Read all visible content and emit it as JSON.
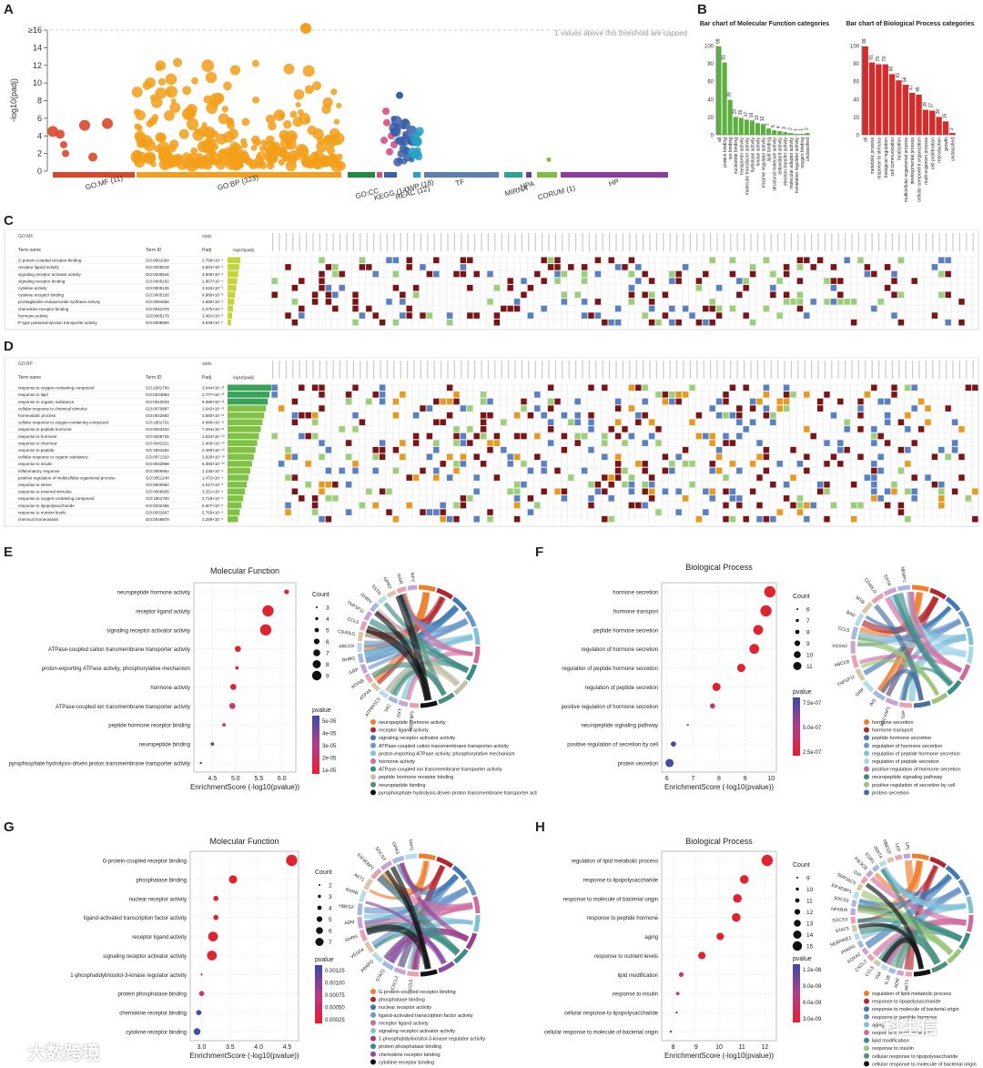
{
  "panels": {
    "A": "A",
    "B": "B",
    "C": "C",
    "D": "D",
    "E": "E",
    "F": "F",
    "G": "G",
    "H": "H"
  },
  "panelA": {
    "y_label": "-log10(padj)",
    "y_ticks": [
      "0",
      "2",
      "4",
      "6",
      "8",
      "10",
      "12",
      "14",
      "≥16"
    ],
    "cap_note": "1 values above this threshold are capped",
    "sources": [
      {
        "label": "GO:MF (11)",
        "color": "#d9472b"
      },
      {
        "label": "GO:BP (323)",
        "color": "#f29f1a"
      },
      {
        "label": "GO:CC",
        "color": "#1e8b3e"
      },
      {
        "label": "KEGG (14)",
        "color": "#d94d86"
      },
      {
        "label": "REAC (12)",
        "color": "#3b5fa8"
      },
      {
        "label": "WP (18)",
        "color": "#24a0c6"
      },
      {
        "label": "TF",
        "color": "#5a7fb0"
      },
      {
        "label": "MIRNA",
        "color": "#2aa39a"
      },
      {
        "label": "HPA",
        "color": "#6a3da0"
      },
      {
        "label": "CORUM (1)",
        "color": "#7fbf3f"
      },
      {
        "label": "HP",
        "color": "#8e3aa0"
      }
    ]
  },
  "panelB_mf": {
    "title": "Bar chart of Molecular Function categories",
    "color": "#5cb040",
    "y_ticks": [
      "0",
      "20",
      "40",
      "60",
      "80",
      "100"
    ],
    "chart_data": {
      "type": "bar",
      "categories": [
        "all",
        "protein binding",
        "ion binding",
        "nucleotide binding",
        "transporter activity",
        "molecular transducer activity",
        "hydrolase activity",
        "kinase activity",
        "enzyme regulator activity",
        "lipid binding",
        "structural molecule activity",
        "antioxidant activity",
        "electron transfer activity",
        "molecular adaptor activity",
        "translation regulator activity",
        "oxygen binding",
        "unclassified"
      ],
      "values": [
        99,
        81,
        39,
        20,
        19,
        17,
        16,
        13,
        12,
        7,
        5,
        4,
        3,
        2,
        1,
        1,
        2
      ]
    },
    "value_labels": [
      "99",
      "81",
      "39",
      "20",
      "19",
      "17",
      "16",
      "13",
      "12",
      "7",
      "5",
      "4",
      "3",
      "2",
      "1",
      "1",
      "2"
    ]
  },
  "panelB_bp": {
    "title": "Bar chart of Biological Process categories",
    "color": "#d42b2b",
    "y_ticks": [
      "0",
      "20",
      "40",
      "60",
      "80",
      "100"
    ],
    "chart_data": {
      "type": "bar",
      "categories": [
        "all",
        "metabolic process",
        "response to stimulus",
        "biological regulation",
        "cell communication",
        "localization",
        "multicellular organismal process",
        "developmental process",
        "cellular component organization",
        "multi-organism process",
        "cell proliferation",
        "reproduction",
        "growth",
        "unclassified"
      ],
      "values": [
        99,
        81,
        79,
        79,
        68,
        61,
        56,
        47,
        45,
        28,
        27,
        20,
        15,
        2
      ]
    },
    "value_labels": [
      "99",
      "81",
      "79",
      "79",
      "68",
      "61",
      "56",
      "47",
      "45",
      "28",
      "27",
      "20",
      "15",
      "2"
    ]
  },
  "panelC": {
    "source": "GO:MF",
    "col_term": "Term name",
    "col_id": "Term ID",
    "col_padj": "Padj",
    "stats": "stats",
    "axis": "-log10(padj)",
    "rows": [
      {
        "name": "G protein-coupled receptor binding",
        "id": "GO:0001664",
        "padj": "2.786×10⁻⁵"
      },
      {
        "name": "receptor ligand activity",
        "id": "GO:0048018",
        "padj": "3.504×10⁻⁵"
      },
      {
        "name": "signaling receptor activator activity",
        "id": "GO:0030546",
        "padj": "3.609×10⁻⁵"
      },
      {
        "name": "signaling receptor binding",
        "id": "GO:0005102",
        "padj": "2.967×10⁻⁴"
      },
      {
        "name": "cytokine activity",
        "id": "GO:0005125",
        "padj": "2.515×10⁻³"
      },
      {
        "name": "cytokine receptor binding",
        "id": "GO:0005126",
        "padj": "8.980×10⁻³"
      },
      {
        "name": "prostaglandin-endoperoxide synthase activity",
        "id": "GO:0004666",
        "padj": "1.655×10⁻²"
      },
      {
        "name": "chemokine receptor binding",
        "id": "GO:0042379",
        "padj": "2.375×10⁻²"
      },
      {
        "name": "hormone activity",
        "id": "GO:0005179",
        "padj": "3.481×10⁻²"
      },
      {
        "name": "P-type potassium/proton transporter activity",
        "id": "GO:0008900",
        "padj": "4.949×10⁻²"
      }
    ]
  },
  "panelD": {
    "source": "GO:BP",
    "col_term": "Term name",
    "col_id": "Term ID",
    "col_padj": "Padj",
    "stats": "stats",
    "axis": "-log10(padj)",
    "rows": [
      {
        "name": "response to oxygen-containing compound",
        "id": "GO:1901700",
        "padj": "3.044×10⁻¹³"
      },
      {
        "name": "response to lipid",
        "id": "GO:0033993",
        "padj": "2.777×10⁻¹²"
      },
      {
        "name": "response to organic substance",
        "id": "GO:0010033",
        "padj": "6.080×10⁻¹²"
      },
      {
        "name": "cellular response to chemical stimulus",
        "id": "GO:0070887",
        "padj": "1.642×10⁻¹¹"
      },
      {
        "name": "homeostatic process",
        "id": "GO:0042592",
        "padj": "3.680×10⁻¹¹"
      },
      {
        "name": "cellular response to oxygen-containing compound",
        "id": "GO:1901701",
        "padj": "4.086×10⁻¹¹"
      },
      {
        "name": "response to peptide hormone",
        "id": "GO:0043434",
        "padj": "7.494×10⁻¹¹"
      },
      {
        "name": "response to hormone",
        "id": "GO:0009725",
        "padj": "1.534×10⁻¹⁰"
      },
      {
        "name": "response to chemical",
        "id": "GO:0042221",
        "padj": "2.406×10⁻¹⁰"
      },
      {
        "name": "response to peptide",
        "id": "GO:1901652",
        "padj": "2.480×10⁻¹⁰"
      },
      {
        "name": "cellular response to organic substance",
        "id": "GO:0071310",
        "padj": "3.928×10⁻¹⁰"
      },
      {
        "name": "response to insulin",
        "id": "GO:0032868",
        "padj": "5.383×10⁻¹⁰"
      },
      {
        "name": "inflammatory response",
        "id": "GO:0006954",
        "padj": "1.235×10⁻⁹"
      },
      {
        "name": "positive regulation of multicellular organismal process",
        "id": "GO:0051240",
        "padj": "1.472×10⁻⁹"
      },
      {
        "name": "response to stress",
        "id": "GO:0006950",
        "padj": "2.017×10⁻⁹"
      },
      {
        "name": "response to external stimulus",
        "id": "GO:0009605",
        "padj": "3.251×10⁻⁹"
      },
      {
        "name": "response to oxygen-containing compound",
        "id": "GO:1901700",
        "padj": "3.718×10⁻⁹"
      },
      {
        "name": "response to lipopolysaccharide",
        "id": "GO:0032496",
        "padj": "5.607×10⁻⁹"
      },
      {
        "name": "response to nutrient levels",
        "id": "GO:0031667",
        "padj": "5.760×10⁻⁹"
      },
      {
        "name": "chemical homeostasis",
        "id": "GO:0048878",
        "padj": "1.259×10⁻⁸"
      }
    ]
  },
  "panelE": {
    "title": "Molecular Function",
    "xlabel": "EnrichmentScore (-log10(pvalue))",
    "x_ticks": [
      "4.5",
      "5.0",
      "5.5",
      "6.0"
    ],
    "count_title": "Count",
    "count_values": [
      "3",
      "4",
      "5",
      "6",
      "7",
      "8",
      "9"
    ],
    "pvalue_title": "pvalue",
    "pvalue_ticks": [
      "5e-05",
      "4e-05",
      "3e-05",
      "2e-05",
      "1e-05"
    ],
    "chart_data": {
      "type": "scatter",
      "terms": [
        "neuropeptide hormone activity",
        "receptor ligand activity",
        "signaling receptor activator activity",
        "ATPase-coupled cation transmembrane transporter activity",
        "proton-exporting ATPase activity, phosphorylative mechanism",
        "hormone activity",
        "ATPase-coupled ion transmembrane transporter activity",
        "peptide hormone receptor binding",
        "neuropeptide binding",
        "pyrophosphate hydrolysis-driven proton transmembrane transporter activity"
      ],
      "x": [
        6.1,
        5.7,
        5.65,
        5.05,
        5.03,
        4.95,
        4.93,
        4.75,
        4.5,
        4.25
      ],
      "count": [
        4,
        9,
        9,
        5,
        3,
        5,
        5,
        3,
        3,
        2
      ],
      "xlim": [
        4.1,
        6.3
      ]
    },
    "chord_genes": [
      "ADCY8P1",
      "OXT",
      "TAC",
      "ATP6V1C1",
      "ATP4A",
      "ATP4B",
      "GRP",
      "RHBG",
      "ABCC8",
      "CD40LG",
      "CCL5",
      "TNFSF11",
      "GHRH",
      "SSTR",
      "GPR3",
      "INSR",
      "NPY"
    ],
    "legend": [
      "neuropeptide hormone activity",
      "receptor ligand activity",
      "signaling receptor activator activity",
      "ATPase-coupled cation transmembrane transporter activity",
      "proton-exporting ATPase activity, phosphorylative mechanism",
      "hormone activity",
      "ATPase-coupled ion transmembrane transporter activity",
      "peptide hormone receptor binding",
      "neuropeptide binding",
      "pyrophosphate hydrolysis-driven proton transmembrane transporter activity"
    ],
    "legend_colors": [
      "#ef7d2a",
      "#b3272c",
      "#3f78b4",
      "#6b96c9",
      "#7fc1d9",
      "#d16b9f",
      "#3b8c86",
      "#c8c0a8",
      "#4a8f7f",
      "#111111"
    ]
  },
  "panelF": {
    "title": "Biological Process",
    "xlabel": "EnrichmentScore (-log10(pvalue))",
    "x_ticks": [
      "6",
      "7",
      "8",
      "9",
      "10"
    ],
    "count_title": "Count",
    "count_values": [
      "6",
      "7",
      "8",
      "9",
      "10",
      "11"
    ],
    "pvalue_title": "pvalue",
    "pvalue_ticks": [
      "7.5e-07",
      "5.0e-07",
      "2.5e-07"
    ],
    "chart_data": {
      "type": "scatter",
      "terms": [
        "hormone secretion",
        "hormone transport",
        "peptide hormone secretion",
        "regulation of hormone secretion",
        "regulation of peptide hormone secretion",
        "regulation of peptide secretion",
        "positive regulation of hormone secretion",
        "neuropeptide signaling pathway",
        "positive regulation of secretion by cell",
        "protein secretion"
      ],
      "x": [
        9.95,
        9.8,
        9.5,
        9.35,
        8.85,
        7.9,
        7.75,
        6.8,
        6.25,
        6.1
      ],
      "count": [
        11,
        11,
        10,
        10,
        9,
        9,
        7,
        5,
        7,
        9
      ],
      "xlim": [
        5.8,
        10.2
      ]
    },
    "chord_genes": [
      "GIP",
      "ADCYAP1",
      "INS",
      "GRP",
      "TNFSF11",
      "ABCC8",
      "FOXA2",
      "CCL5",
      "BAD",
      "MYB",
      "CD40LG",
      "SSTR",
      "NEMP1"
    ],
    "legend": [
      "hormone secretion",
      "hormone transport",
      "peptide hormone secretion",
      "regulation of hormone secretion",
      "regulation of peptide hormone secretion",
      "regulation of peptide secretion",
      "positive regulation of hormone secretion",
      "neuropeptide signaling pathway",
      "positive regulation of secretion by cell",
      "protein secretion"
    ],
    "legend_colors": [
      "#ef7d2a",
      "#b3272c",
      "#3f78b4",
      "#6b96c9",
      "#7fc1d9",
      "#a8d8e8",
      "#d16b9f",
      "#3b8c86",
      "#9bc47a",
      "#4a6f9f"
    ]
  },
  "panelG": {
    "title": "Molecular Function",
    "xlabel": "EnrichmentScore (-log10(pvalue))",
    "x_ticks": [
      "3.0",
      "3.5",
      "4.0",
      "4.5"
    ],
    "count_title": "Count",
    "count_values": [
      "2",
      "3",
      "4",
      "5",
      "6",
      "7"
    ],
    "pvalue_title": "pvalue",
    "pvalue_ticks": [
      "0.00125",
      "0.00100",
      "0.00075",
      "0.00050",
      "0.00025"
    ],
    "chart_data": {
      "type": "scatter",
      "terms": [
        "G protein-coupled receptor binding",
        "phosphatase binding",
        "nuclear receptor activity",
        "ligand-activated transcription factor activity",
        "receptor ligand activity",
        "signaling receptor activator activity",
        "1-phosphatidylinositol-3-kinase regulator activity",
        "protein phosphatase binding",
        "chemokine receptor binding",
        "cytokine receptor binding"
      ],
      "x": [
        4.58,
        3.55,
        3.25,
        3.25,
        3.2,
        3.18,
        3.0,
        3.0,
        2.95,
        2.92
      ],
      "count": [
        7,
        5,
        3,
        3,
        6,
        6,
        1,
        3,
        3,
        4
      ],
      "xlim": [
        2.8,
        4.7
      ]
    },
    "chord_genes": [
      "CCL5",
      "CXCL2",
      "STAT3",
      "PPARG",
      "VEGFA",
      "GHRH",
      "ADM",
      "HBEGF",
      "RXRB",
      "AKT1",
      "EIF4EBP1",
      "SOCS3",
      "GPR3",
      "SAH1"
    ],
    "legend": [
      "G protein-coupled receptor binding",
      "phosphatase binding",
      "nuclear receptor activity",
      "ligand-activated transcription factor activity",
      "receptor ligand activity",
      "signaling receptor activator activity",
      "1-phosphatidylinositol-3-kinase regulator activity",
      "protein phosphatase binding",
      "chemokine receptor binding",
      "cytokine receptor binding"
    ],
    "legend_colors": [
      "#ef7d2a",
      "#b3272c",
      "#3f78b4",
      "#6b96c9",
      "#d16b9f",
      "#7fc1d9",
      "#9b3d8f",
      "#3b8c86",
      "#8c4aa0",
      "#111111"
    ]
  },
  "panelH": {
    "title": "Biological Process",
    "xlabel": "EnrichmentScore (-log10(pvalue))",
    "x_ticks": [
      "8",
      "9",
      "10",
      "11",
      "12"
    ],
    "count_title": "Count",
    "count_values": [
      "9",
      "10",
      "11",
      "12",
      "13",
      "14",
      "15"
    ],
    "pvalue_title": "pvalue",
    "pvalue_ticks": [
      "1.2e-08",
      "9.0e-09",
      "6.0e-09",
      "3.0e-09"
    ],
    "chart_data": {
      "type": "scatter",
      "terms": [
        "regulation of lipid metabolic process",
        "response to lipopolysaccharide",
        "response to molecule of bacterial origin",
        "response to peptide hormone",
        "aging",
        "response to nutrient levels",
        "lipid modification",
        "response to insulin",
        "cellular response to lipopolysaccharide",
        "cellular response to molecule of bacterial origin"
      ],
      "x": [
        12.1,
        11.1,
        10.8,
        10.75,
        10.05,
        9.25,
        8.35,
        8.2,
        8.15,
        7.9
      ],
      "count": [
        15,
        13,
        13,
        13,
        12,
        12,
        10,
        9,
        8,
        8
      ],
      "xlim": [
        7.5,
        12.5
      ]
    },
    "chord_genes": [
      "AKT1",
      "ADM",
      "IL1B",
      "TNF",
      "CCL5",
      "CXCL2",
      "FOXA2",
      "PPARG",
      "SERPINE1",
      "STAT3",
      "SOCS3",
      "NFKBIA",
      "SOCS1",
      "EIF4EBP1",
      "SDR16C5",
      "GIP",
      "PIK3CB",
      "EGR1",
      "DDIT4",
      "HBEGF",
      "LEP",
      "LPL"
    ],
    "legend": [
      "regulation of lipid metabolic process",
      "response to lipopolysaccharide",
      "response to molecule of bacterial origin",
      "response to peptide hormone",
      "aging",
      "response to nutrient levels",
      "lipid modification",
      "response to insulin",
      "cellular response to lipopolysaccharide",
      "cellular response to molecule of bacterial origin"
    ],
    "legend_colors": [
      "#ef7d2a",
      "#b3272c",
      "#3f78b4",
      "#6b96c9",
      "#7fc1d9",
      "#d16b9f",
      "#3b8c86",
      "#9bc47a",
      "#4a8f7f",
      "#111111"
    ]
  },
  "watermark_left": "大数跨境",
  "watermark_right": "科生信"
}
